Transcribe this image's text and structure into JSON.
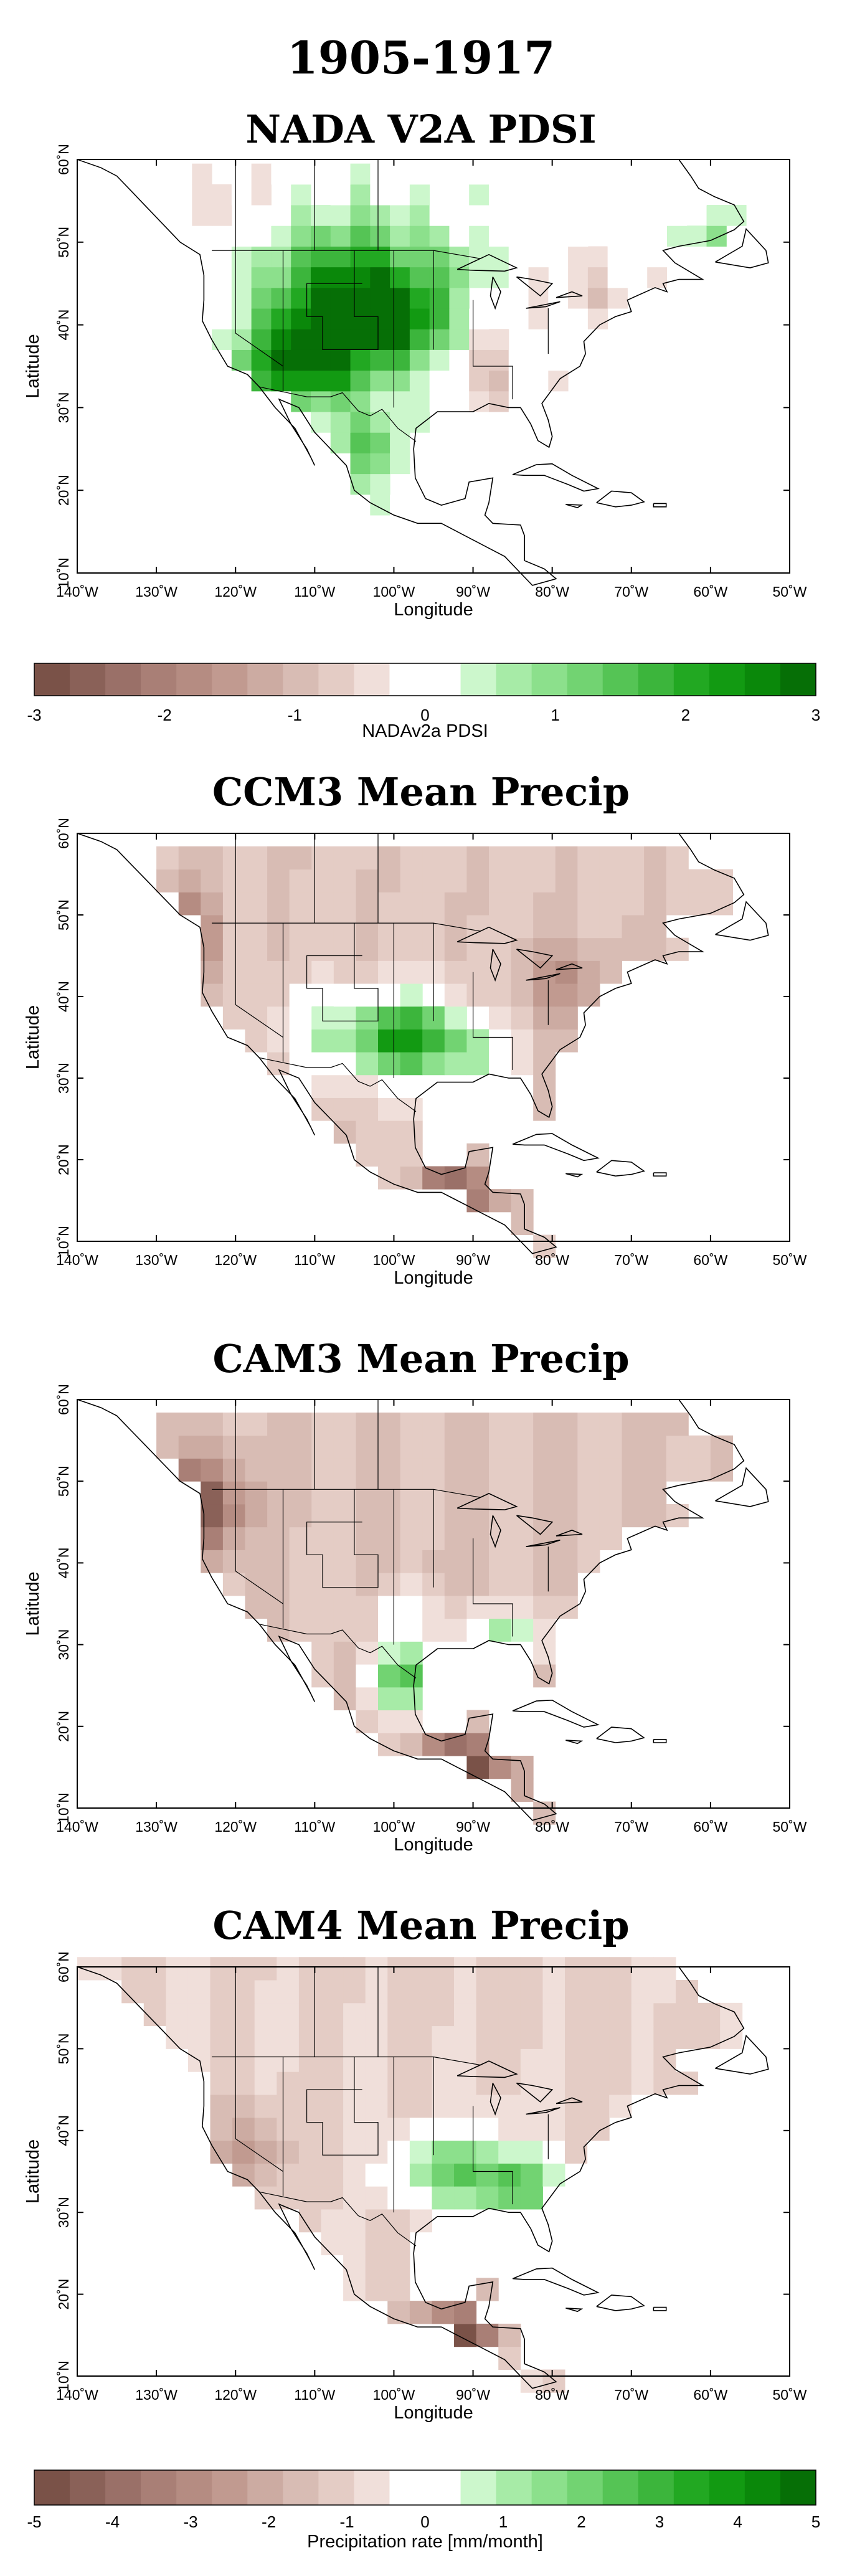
{
  "title": "1905-1917",
  "chart_data": [
    {
      "type": "heatmap",
      "title": "NADA V2A PDSI",
      "xlabel": "Longitude",
      "ylabel": "Latitude",
      "xlim": [
        -140,
        -50
      ],
      "ylim": [
        10,
        60
      ],
      "x_ticks": [
        "140˚W",
        "130˚W",
        "120˚W",
        "110˚W",
        "100˚W",
        "90˚W",
        "80˚W",
        "70˚W",
        "60˚W",
        "50˚W"
      ],
      "y_ticks": [
        "10˚N",
        "20˚N",
        "30˚N",
        "40˚N",
        "50˚N",
        "60˚N"
      ],
      "grid_spacing_deg": 2.5,
      "colorbar": "pdsi",
      "anomalies": [
        {
          "lon": -105,
          "lat": 44,
          "value": 2.7,
          "sx": 10,
          "sy": 8
        },
        {
          "lon": -110,
          "lat": 36,
          "value": 2.5,
          "sx": 7,
          "sy": 6
        },
        {
          "lon": -98,
          "lat": 40,
          "value": 1.5,
          "sx": 5,
          "sy": 5
        },
        {
          "lon": -103,
          "lat": 25,
          "value": 1.4,
          "sx": 4,
          "sy": 4
        },
        {
          "lon": -118,
          "lat": 34,
          "value": 1.2,
          "sx": 4,
          "sy": 4
        },
        {
          "lon": -120,
          "lat": 55,
          "value": -0.5,
          "sx": 4,
          "sy": 4
        },
        {
          "lon": -60,
          "lat": 51,
          "value": 1.0,
          "sx": 3,
          "sy": 2
        },
        {
          "lon": -88,
          "lat": 34,
          "value": -0.8,
          "sx": 5,
          "sy": 5
        },
        {
          "lon": -75,
          "lat": 44,
          "value": -0.6,
          "sx": 6,
          "sy": 4
        },
        {
          "lon": -92,
          "lat": 47,
          "value": 0.6,
          "sx": 3,
          "sy": 3
        }
      ],
      "bounds": {
        "lat_min": 17,
        "lat_max": 60,
        "lon_min": -128,
        "lon_max": -57,
        "north_limit": "west_only"
      }
    },
    {
      "type": "heatmap",
      "title": "CCM3 Mean Precip",
      "xlabel": "Longitude",
      "ylabel": "Latitude",
      "xlim": [
        -140,
        -50
      ],
      "ylim": [
        10,
        60
      ],
      "x_ticks": [
        "140˚W",
        "130˚W",
        "120˚W",
        "110˚W",
        "100˚W",
        "90˚W",
        "80˚W",
        "70˚W",
        "60˚W",
        "50˚W"
      ],
      "y_ticks": [
        "10˚N",
        "20˚N",
        "30˚N",
        "40˚N",
        "50˚N",
        "60˚N"
      ],
      "grid_spacing_deg": 2.8,
      "colorbar": "precip",
      "base_value": -1.2,
      "anomalies": [
        {
          "lon": -99,
          "lat": 35,
          "value": 5.0,
          "sx": 7,
          "sy": 5
        },
        {
          "lon": -90,
          "lat": 33,
          "value": 2.0,
          "sx": 5,
          "sy": 4
        },
        {
          "lon": -110,
          "lat": 36,
          "value": 1.5,
          "sx": 5,
          "sy": 5
        },
        {
          "lon": -126,
          "lat": 47,
          "value": -2.2,
          "sx": 4,
          "sy": 6
        },
        {
          "lon": -92,
          "lat": 15,
          "value": -3.5,
          "sx": 5,
          "sy": 5
        },
        {
          "lon": -78,
          "lat": 42,
          "value": -1.5,
          "sx": 6,
          "sy": 5
        }
      ],
      "bounds": {
        "lat_min": 8,
        "lat_max": 58,
        "lon_min": -130,
        "lon_max": -57
      }
    },
    {
      "type": "heatmap",
      "title": "CAM3 Mean Precip",
      "xlabel": "Longitude",
      "ylabel": "Latitude",
      "xlim": [
        -140,
        -50
      ],
      "ylim": [
        10,
        60
      ],
      "x_ticks": [
        "140˚W",
        "130˚W",
        "120˚W",
        "110˚W",
        "100˚W",
        "90˚W",
        "80˚W",
        "70˚W",
        "60˚W",
        "50˚W"
      ],
      "y_ticks": [
        "10˚N",
        "20˚N",
        "30˚N",
        "40˚N",
        "50˚N",
        "60˚N"
      ],
      "grid_spacing_deg": 2.8,
      "colorbar": "precip",
      "base_value": -1.4,
      "anomalies": [
        {
          "lon": -124,
          "lat": 47,
          "value": -3.0,
          "sx": 5,
          "sy": 6
        },
        {
          "lon": -99,
          "lat": 26,
          "value": 4.0,
          "sx": 4,
          "sy": 4
        },
        {
          "lon": -86,
          "lat": 31,
          "value": 2.5,
          "sx": 6,
          "sy": 3
        },
        {
          "lon": -100,
          "lat": 34,
          "value": 1.0,
          "sx": 6,
          "sy": 3
        },
        {
          "lon": -91,
          "lat": 15,
          "value": -4.0,
          "sx": 5,
          "sy": 4
        },
        {
          "lon": -107,
          "lat": 42,
          "value": 0.2,
          "sx": 4,
          "sy": 3
        }
      ],
      "bounds": {
        "lat_min": 8,
        "lat_max": 58,
        "lon_min": -130,
        "lon_max": -57
      }
    },
    {
      "type": "heatmap",
      "title": "CAM4 Mean Precip",
      "xlabel": "Longitude",
      "ylabel": "Latitude",
      "xlim": [
        -140,
        -50
      ],
      "ylim": [
        10,
        60
      ],
      "x_ticks": [
        "140˚W",
        "130˚W",
        "120˚W",
        "110˚W",
        "100˚W",
        "90˚W",
        "80˚W",
        "70˚W",
        "60˚W",
        "50˚W"
      ],
      "y_ticks": [
        "10˚N",
        "20˚N",
        "30˚N",
        "40˚N",
        "50˚N",
        "60˚N"
      ],
      "grid_spacing_deg": 2.8,
      "colorbar": "precip",
      "base_value": -1.0,
      "anomalies": [
        {
          "lon": -92,
          "lat": 35,
          "value": 3.0,
          "sx": 8,
          "sy": 5
        },
        {
          "lon": -84,
          "lat": 33,
          "value": 2.5,
          "sx": 5,
          "sy": 4
        },
        {
          "lon": -118,
          "lat": 38,
          "value": -1.5,
          "sx": 4,
          "sy": 5
        },
        {
          "lon": -92,
          "lat": 15,
          "value": -4.0,
          "sx": 5,
          "sy": 4
        },
        {
          "lon": -86,
          "lat": 44,
          "value": 0.4,
          "sx": 5,
          "sy": 2
        }
      ],
      "bounds": {
        "lat_min": 8,
        "lat_max": 60,
        "lon_min": -140,
        "lon_max": -57
      }
    }
  ],
  "colorbars": {
    "pdsi": {
      "label": "NADAv2a PDSI",
      "ticks": [
        "-3",
        "-2",
        "-1",
        "0",
        "1",
        "2",
        "3"
      ],
      "tick_values": [
        -3,
        -2,
        -1,
        0,
        1,
        2,
        3
      ],
      "range": [
        -3,
        3
      ],
      "colors": [
        "#7a5248",
        "#8a6158",
        "#9a7068",
        "#a97f76",
        "#b58c82",
        "#c19a90",
        "#ccaba2",
        "#d8bcb4",
        "#e4ccc5",
        "#f0dfda",
        "#ffffff",
        "#ffffff",
        "#ccf7cc",
        "#a7eba7",
        "#8ce08c",
        "#72d372",
        "#55c455",
        "#3cb53c",
        "#22a822",
        "#129a12",
        "#0a880a",
        "#066f06"
      ]
    },
    "precip": {
      "label": "Precipitation rate [mm/month]",
      "ticks": [
        "-5",
        "-4",
        "-3",
        "-2",
        "-1",
        "0",
        "1",
        "2",
        "3",
        "4",
        "5"
      ],
      "tick_values": [
        -5,
        -4,
        -3,
        -2,
        -1,
        0,
        1,
        2,
        3,
        4,
        5
      ],
      "range": [
        -5,
        5
      ],
      "colors": [
        "#7a5248",
        "#8a6158",
        "#9a7068",
        "#a97f76",
        "#b58c82",
        "#c19a90",
        "#ccaba2",
        "#d8bcb4",
        "#e4ccc5",
        "#f0dfda",
        "#ffffff",
        "#ffffff",
        "#ccf7cc",
        "#a7eba7",
        "#8ce08c",
        "#72d372",
        "#55c455",
        "#3cb53c",
        "#22a822",
        "#129a12",
        "#0a880a",
        "#066f06"
      ]
    }
  }
}
